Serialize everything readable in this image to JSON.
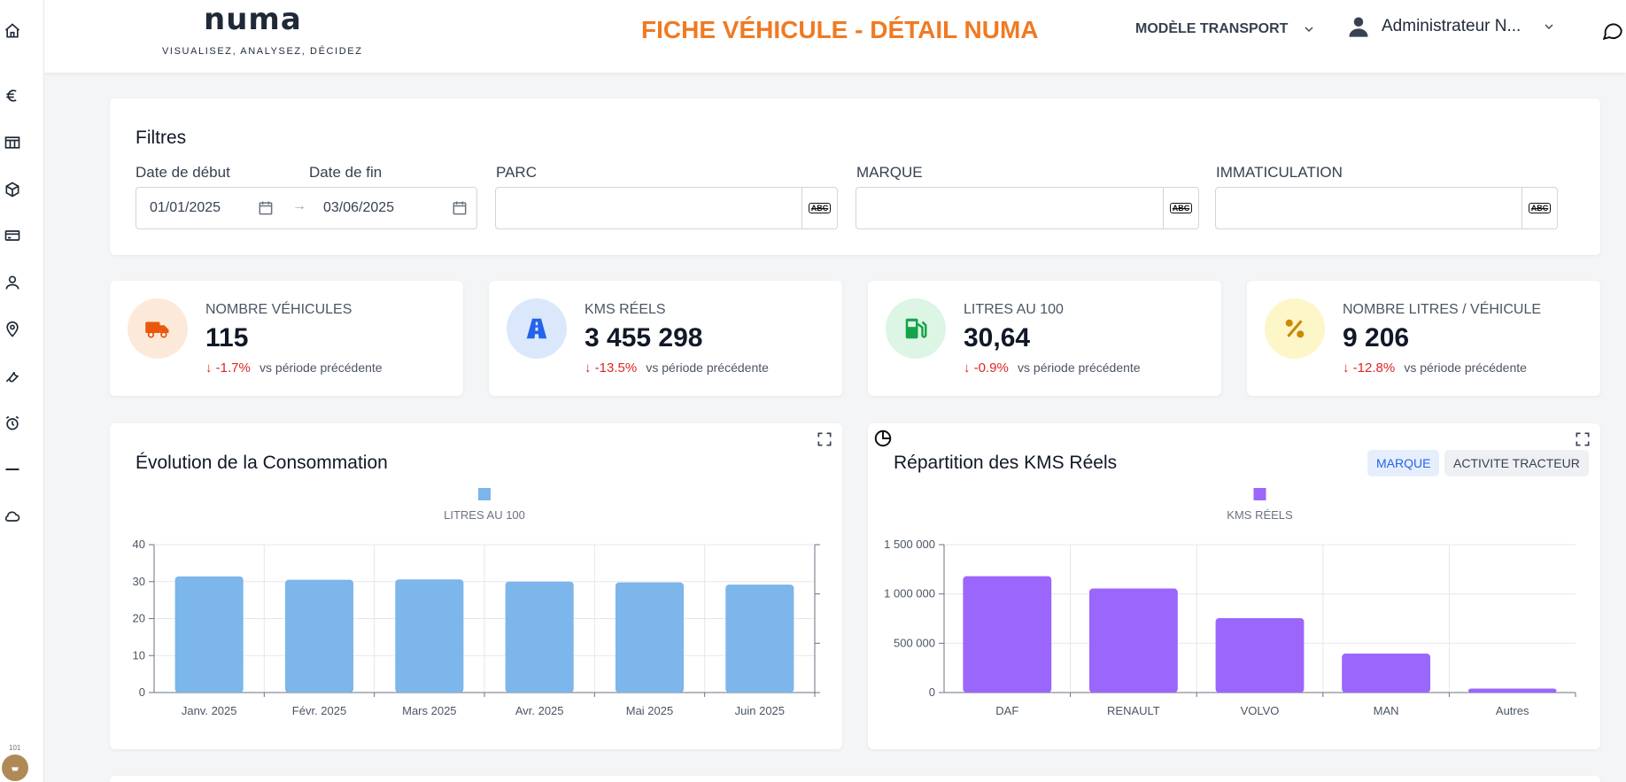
{
  "header": {
    "logo_text": "numa",
    "logo_tagline": "VISUALISEZ, ANALYSEZ, DÉCIDEZ",
    "page_title": "FICHE VÉHICULE - DÉTAIL NUMA",
    "model_select_label": "MODÈLE TRANSPORT",
    "user_name": "Administrateur N...",
    "icons": {
      "home": "home-icon",
      "model_chevron": "chevron-down-icon",
      "user": "user-icon",
      "user_chevron": "chevron-down-icon",
      "chat": "chat-icon"
    }
  },
  "sidebar": {
    "items": [
      {
        "icon": "home-icon"
      },
      {
        "icon": "euro-icon"
      },
      {
        "icon": "table-icon"
      },
      {
        "icon": "cube-icon"
      },
      {
        "icon": "credit-card-icon"
      },
      {
        "icon": "user-icon"
      },
      {
        "icon": "location-pin-icon"
      },
      {
        "icon": "wrench-icon"
      },
      {
        "icon": "alarm-clock-icon"
      },
      {
        "icon": "minus-icon"
      },
      {
        "icon": "cloud-icon"
      }
    ],
    "avatar_badge": "101"
  },
  "filters": {
    "title": "Filtres",
    "start_label": "Date de début",
    "end_label": "Date de fin",
    "start_value": "01/01/2025",
    "end_value": "03/06/2025",
    "date_separator": "→",
    "parc_label": "PARC",
    "marque_label": "MARQUE",
    "immat_label": "IMMATICULATION",
    "abc_text": "ABC"
  },
  "kpis": [
    {
      "label": "NOMBRE VÉHICULES",
      "value": "115",
      "trend": "-1.7%",
      "compare": "vs période précédente",
      "icon": "truck-icon",
      "color": "#ea580c",
      "bg": "#fde9d9"
    },
    {
      "label": "KMS RÉELS",
      "value": "3 455 298",
      "trend": "-13.5%",
      "compare": "vs période précédente",
      "icon": "road-icon",
      "color": "#2563eb",
      "bg": "#dbe8fc"
    },
    {
      "label": "LITRES AU 100",
      "value": "30,64",
      "trend": "-0.9%",
      "compare": "vs période précédente",
      "icon": "fuel-pump-icon",
      "color": "#16a34a",
      "bg": "#dcf5e4"
    },
    {
      "label": "NOMBRE LITRES / VÉHICULE",
      "value": "9 206",
      "trend": "-12.8%",
      "compare": "vs période précédente",
      "icon": "percent-icon",
      "color": "#ca8a04",
      "bg": "#fdf6c8"
    }
  ],
  "trend_arrow": "↓",
  "chips": {
    "marque": "MARQUE",
    "activite": "ACTIVITE TRACTEUR"
  },
  "chart_data": [
    {
      "type": "bar",
      "title": "Évolution de la Consommation",
      "categories": [
        "Janv. 2025",
        "Févr. 2025",
        "Mars 2025",
        "Avr. 2025",
        "Mai 2025",
        "Juin 2025"
      ],
      "series": [
        {
          "name": "LITRES AU 100",
          "values": [
            31.4,
            30.5,
            30.6,
            30.0,
            29.8,
            29.2
          ]
        }
      ],
      "ylim": [
        0,
        40
      ],
      "yticks": [
        "0",
        "10",
        "20",
        "30",
        "40"
      ],
      "ytick_values": [
        0,
        10,
        20,
        30,
        40
      ],
      "grid": true,
      "legend": "top-center",
      "color": "#7cb6ea"
    },
    {
      "type": "bar",
      "title": "Répartition des KMS Réels",
      "categories": [
        "DAF",
        "RENAULT",
        "VOLVO",
        "MAN",
        "Autres"
      ],
      "series": [
        {
          "name": "KMS RÉELS",
          "values": [
            1180000,
            1055000,
            755000,
            395000,
            40000
          ]
        }
      ],
      "ylim": [
        0,
        1500000
      ],
      "yticks": [
        "0",
        "500 000",
        "1 000 000",
        "1 500 000"
      ],
      "ytick_values": [
        0,
        500000,
        1000000,
        1500000
      ],
      "grid": true,
      "legend": "top-center",
      "color": "#9b66fb"
    }
  ]
}
